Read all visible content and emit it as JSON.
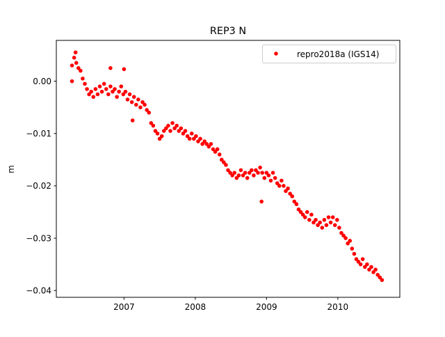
{
  "chart_data": {
    "type": "scatter",
    "title": "REP3 N",
    "xlabel": "",
    "ylabel": "m",
    "xlim": [
      2006.05,
      2010.87
    ],
    "ylim": [
      -0.0413,
      0.0078
    ],
    "xticks": [
      2007,
      2008,
      2009,
      2010
    ],
    "xtick_labels": [
      "2007",
      "2008",
      "2009",
      "2010"
    ],
    "yticks": [
      0.0,
      -0.01,
      -0.02,
      -0.03,
      -0.04
    ],
    "ytick_labels": [
      "0.00",
      "−0.01",
      "−0.02",
      "−0.03",
      "−0.04"
    ],
    "grid": false,
    "legend": {
      "placement": "top-right",
      "entries": [
        "repro2018a (IGS14)"
      ]
    },
    "series": [
      {
        "name": "repro2018a (IGS14)",
        "color": "#ff0000",
        "x_start": 2006.27,
        "x_step": 0.03,
        "y": [
          0.003,
          0.0045,
          0.0035,
          0.0025,
          0.002,
          0.0005,
          -0.0005,
          -0.0015,
          -0.0025,
          -0.002,
          -0.003,
          -0.0015,
          -0.0025,
          -0.001,
          -0.002,
          -0.0005,
          -0.0015,
          -0.0025,
          -0.001,
          -0.002,
          -0.0015,
          -0.003,
          -0.002,
          -0.001,
          -0.0025,
          -0.002,
          -0.0035,
          -0.0025,
          -0.004,
          -0.003,
          -0.0045,
          -0.0035,
          -0.005,
          -0.004,
          -0.0045,
          -0.0055,
          -0.006,
          -0.008,
          -0.0085,
          -0.0095,
          -0.01,
          -0.011,
          -0.0105,
          -0.0095,
          -0.009,
          -0.0085,
          -0.0095,
          -0.008,
          -0.009,
          -0.0085,
          -0.0095,
          -0.009,
          -0.01,
          -0.0095,
          -0.0105,
          -0.011,
          -0.01,
          -0.011,
          -0.0105,
          -0.0115,
          -0.011,
          -0.012,
          -0.0115,
          -0.012,
          -0.0125,
          -0.012,
          -0.013,
          -0.0135,
          -0.013,
          -0.014,
          -0.015,
          -0.0155,
          -0.016,
          -0.017,
          -0.0175,
          -0.018,
          -0.0175,
          -0.0185,
          -0.018,
          -0.017,
          -0.018,
          -0.0175,
          -0.0185,
          -0.0175,
          -0.017,
          -0.018,
          -0.017,
          -0.0175,
          -0.0165,
          -0.0175,
          -0.0185,
          -0.0175,
          -0.018,
          -0.019,
          -0.0175,
          -0.0185,
          -0.0195,
          -0.02,
          -0.019,
          -0.02,
          -0.021,
          -0.0205,
          -0.0215,
          -0.022,
          -0.023,
          -0.0235,
          -0.0245,
          -0.025,
          -0.0255,
          -0.026,
          -0.025,
          -0.0265,
          -0.0255,
          -0.027,
          -0.0265,
          -0.0275,
          -0.027,
          -0.028,
          -0.0265,
          -0.0275,
          -0.026,
          -0.027,
          -0.026,
          -0.0275,
          -0.0265,
          -0.028,
          -0.029,
          -0.0295,
          -0.03,
          -0.031,
          -0.0305,
          -0.032,
          -0.033,
          -0.034,
          -0.0345,
          -0.035,
          -0.034,
          -0.0355,
          -0.035,
          -0.036,
          -0.0355,
          -0.0365,
          -0.036,
          -0.037,
          -0.0375,
          -0.038
        ],
        "outliers": [
          [
            2006.27,
            0.0
          ],
          [
            2006.32,
            0.0055
          ],
          [
            2006.81,
            0.0025
          ],
          [
            2007.0,
            0.0023
          ],
          [
            2007.12,
            -0.0075
          ],
          [
            2008.93,
            -0.023
          ]
        ]
      }
    ]
  }
}
